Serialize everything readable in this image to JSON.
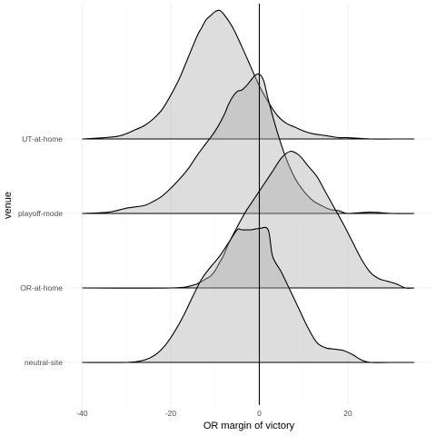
{
  "chart_data": {
    "type": "ridgeline",
    "xlabel": "OR margin of victory",
    "ylabel": "venue",
    "xlim": [
      -42,
      38
    ],
    "x_ticks": [
      -40,
      -20,
      0,
      20
    ],
    "x_tick_labels": [
      "-40",
      "-20",
      "0",
      "20"
    ],
    "reference_line_x": 0,
    "grid": true,
    "fill_color": "#aaaaaa",
    "line_color": "#000000",
    "series": [
      {
        "name": "neutral-site",
        "x": [
          -40,
          -30,
          -27,
          -25,
          -23,
          -21,
          -19,
          -17,
          -15,
          -13,
          -11,
          -9,
          -7,
          -5,
          -4,
          -2,
          0,
          2,
          3,
          5,
          7,
          9,
          11,
          13,
          15,
          17,
          19,
          21,
          23,
          25,
          30,
          35
        ],
        "density": [
          0,
          0,
          0.01,
          0.03,
          0.07,
          0.14,
          0.24,
          0.36,
          0.5,
          0.63,
          0.72,
          0.8,
          0.9,
          1.0,
          1.0,
          1.0,
          1.01,
          1.0,
          0.8,
          0.68,
          0.54,
          0.4,
          0.26,
          0.15,
          0.11,
          0.1,
          0.09,
          0.06,
          0.02,
          0,
          0,
          0
        ]
      },
      {
        "name": "OR-at-home",
        "x": [
          -40,
          -20,
          -15,
          -13,
          -12,
          -11,
          -10,
          -9,
          -8,
          -7,
          -5,
          -3,
          -1,
          1,
          3,
          5,
          7,
          9,
          11,
          13,
          15,
          17,
          19,
          21,
          23,
          25,
          27,
          29,
          31,
          33,
          35
        ],
        "density": [
          0,
          0,
          0.02,
          0.05,
          0.07,
          0.09,
          0.13,
          0.19,
          0.25,
          0.33,
          0.46,
          0.58,
          0.68,
          0.78,
          0.88,
          0.98,
          1.03,
          1.0,
          0.92,
          0.84,
          0.72,
          0.6,
          0.48,
          0.35,
          0.22,
          0.12,
          0.07,
          0.05,
          0.03,
          0,
          0
        ]
      },
      {
        "name": "playoff-mode",
        "x": [
          -40,
          -34,
          -30,
          -26,
          -24,
          -22,
          -20,
          -18,
          -16,
          -14,
          -12,
          -10,
          -8,
          -7,
          -6,
          -5,
          -4,
          -3,
          -2,
          -1,
          0,
          1,
          2,
          4,
          6,
          8,
          10,
          12,
          14,
          16,
          18,
          20,
          25,
          30,
          35
        ],
        "density": [
          0,
          0.01,
          0.04,
          0.06,
          0.09,
          0.13,
          0.19,
          0.26,
          0.34,
          0.44,
          0.53,
          0.62,
          0.74,
          0.82,
          0.88,
          0.92,
          0.93,
          0.96,
          1.0,
          1.04,
          1.05,
          1.0,
          0.86,
          0.62,
          0.42,
          0.27,
          0.17,
          0.1,
          0.06,
          0.03,
          0.02,
          0,
          0.01,
          0,
          0
        ]
      },
      {
        "name": "UT-at-home",
        "x": [
          -40,
          -35,
          -32,
          -30,
          -28,
          -26,
          -24,
          -22,
          -20,
          -18,
          -16,
          -14,
          -13,
          -12,
          -11,
          -10,
          -9,
          -8,
          -6,
          -4,
          -2,
          0,
          2,
          4,
          6,
          8,
          10,
          12,
          14,
          16,
          18,
          20,
          25,
          30,
          35
        ],
        "density": [
          0,
          0.01,
          0.02,
          0.04,
          0.07,
          0.1,
          0.15,
          0.22,
          0.33,
          0.46,
          0.62,
          0.78,
          0.84,
          0.9,
          0.93,
          0.96,
          0.97,
          0.94,
          0.84,
          0.7,
          0.55,
          0.4,
          0.28,
          0.18,
          0.12,
          0.09,
          0.06,
          0.04,
          0.03,
          0.02,
          0.01,
          0.01,
          0,
          0,
          0
        ]
      }
    ]
  }
}
